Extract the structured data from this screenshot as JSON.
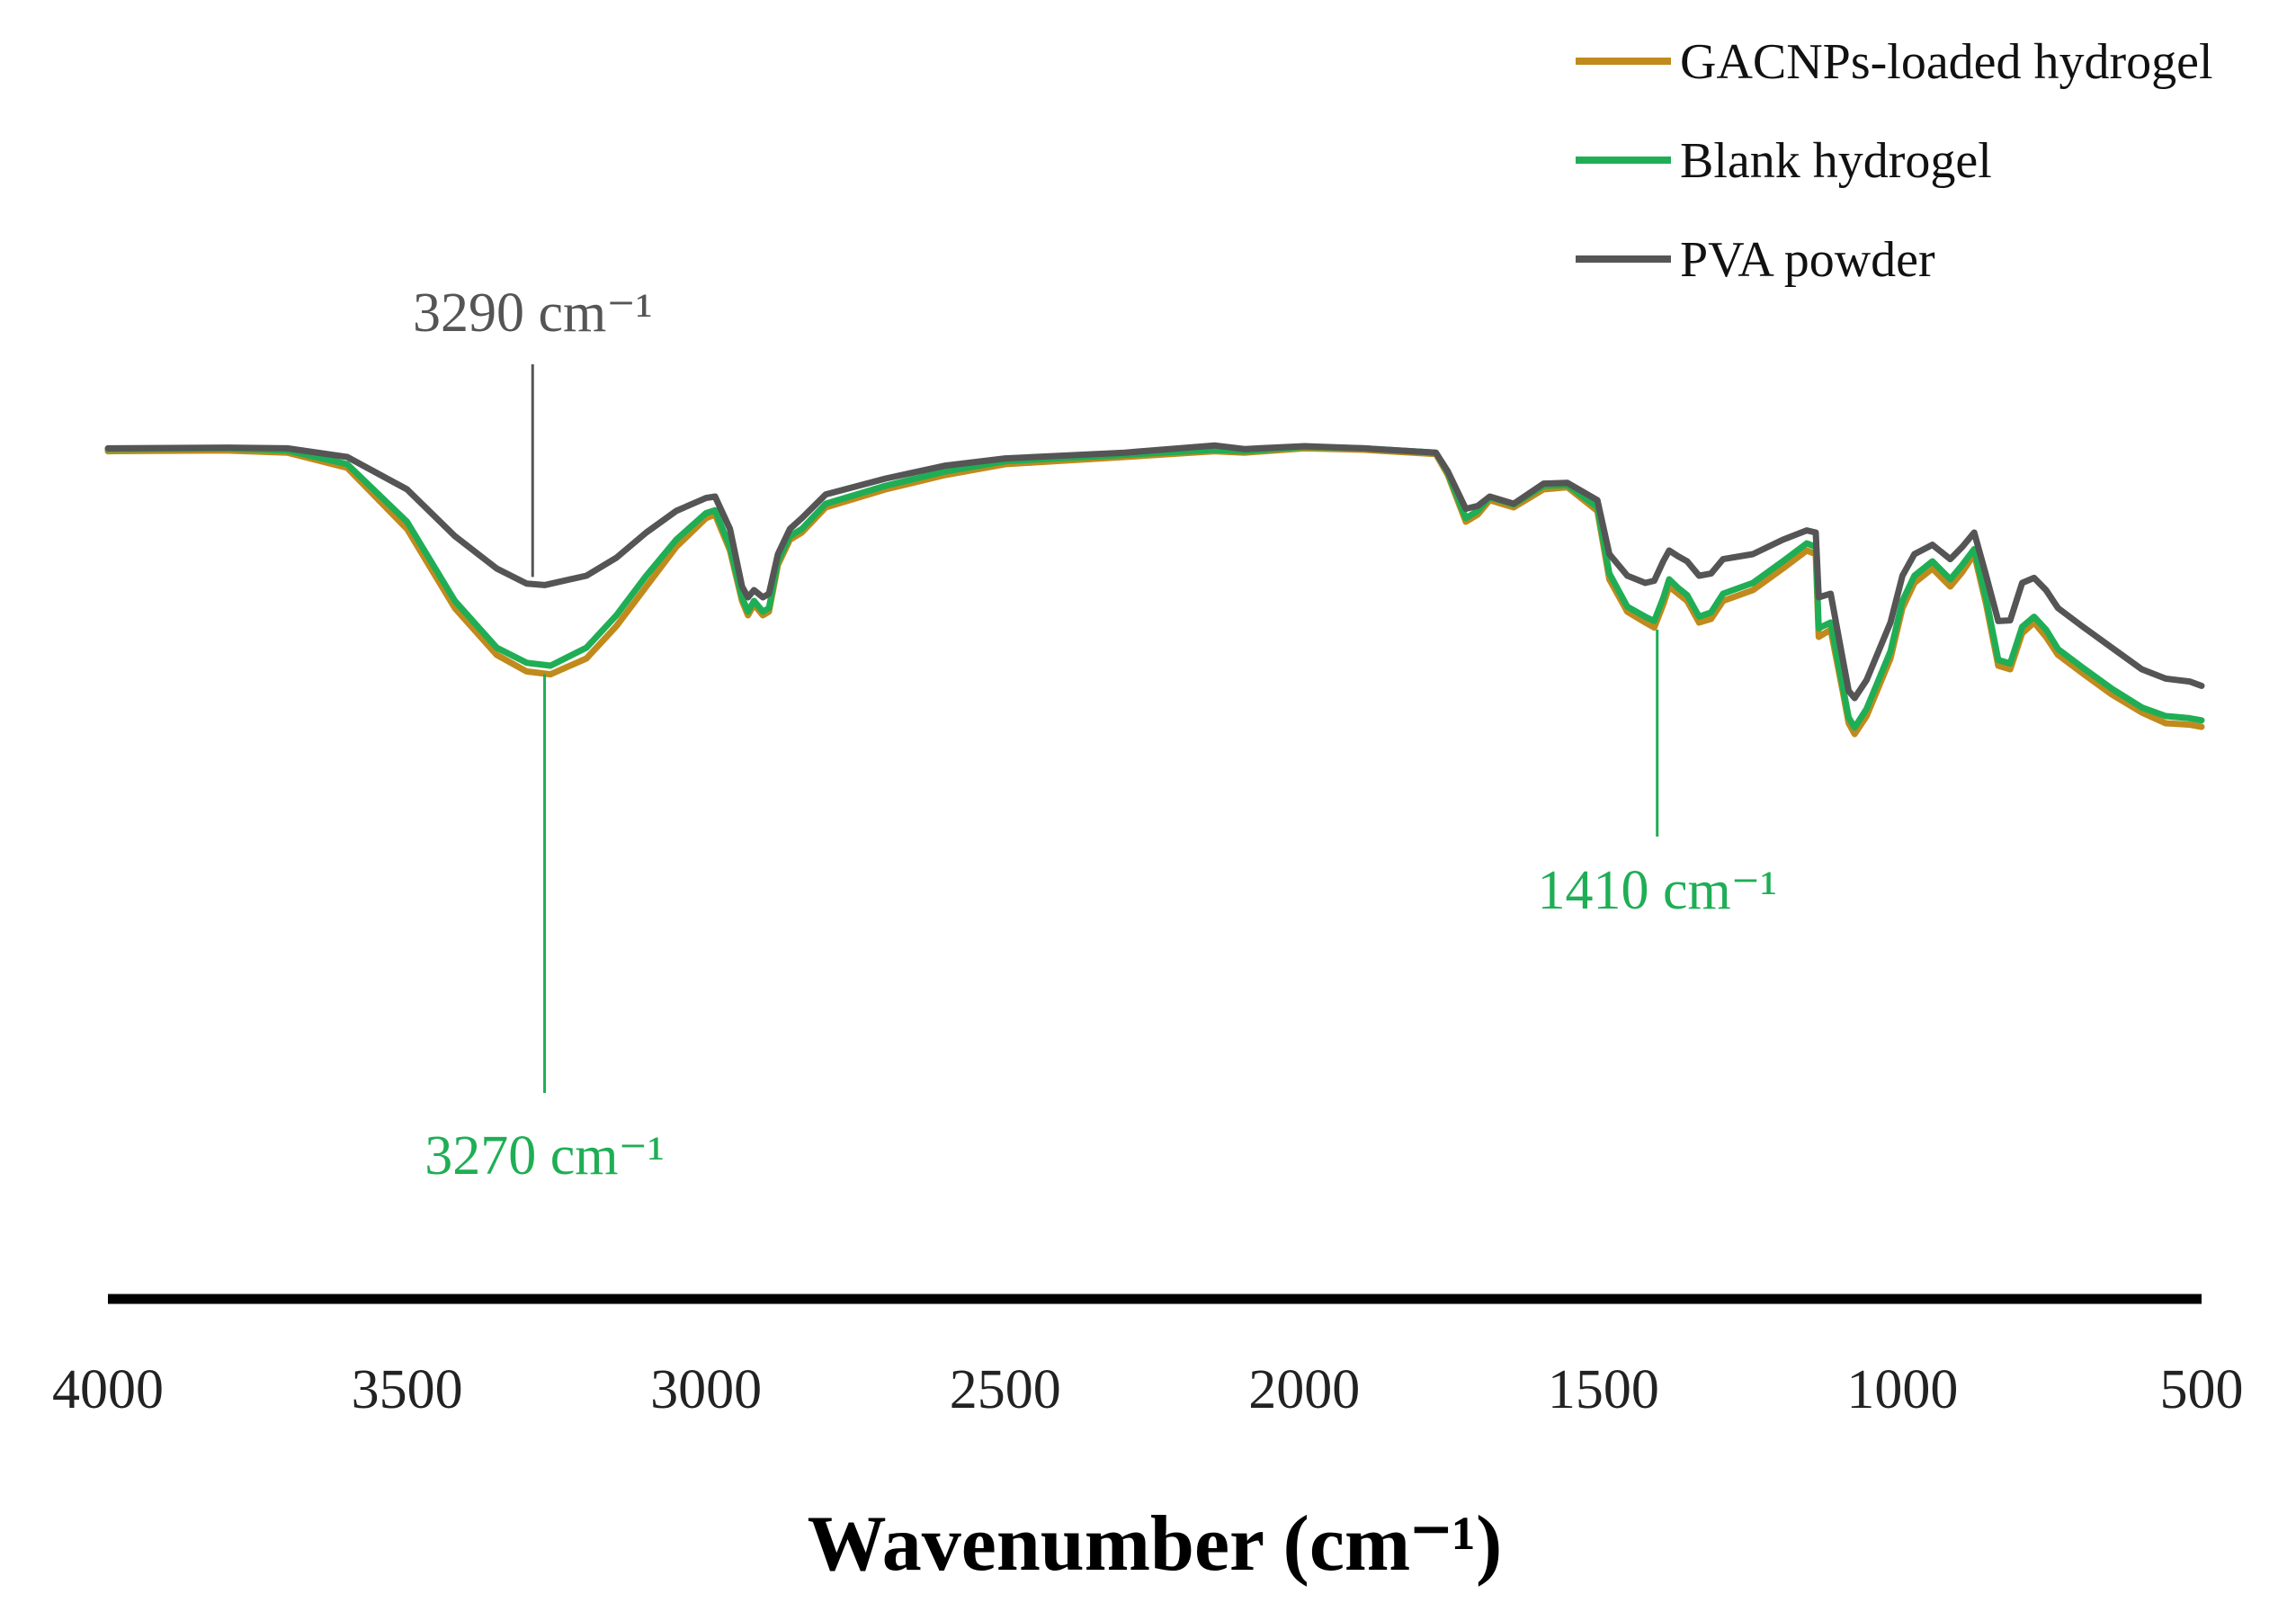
{
  "chart_data": {
    "type": "line",
    "title": "",
    "xlabel": "Wavenumber (cm⁻¹)",
    "ylabel": "",
    "xlim": [
      4000,
      500
    ],
    "x_reversed": true,
    "ylim": [
      0,
      100
    ],
    "grid": false,
    "x_ticks": [
      "4000",
      "3500",
      "3000",
      "2500",
      "2000",
      "1500",
      "1000",
      "500"
    ],
    "legend_position": "top-right",
    "series": [
      {
        "name": "GACNPs-loaded hydrogel",
        "color": "#C18A1C",
        "points": [
          [
            4000,
            84.8
          ],
          [
            3800,
            84.9
          ],
          [
            3700,
            84.6
          ],
          [
            3600,
            82.5
          ],
          [
            3500,
            74
          ],
          [
            3420,
            63
          ],
          [
            3350,
            56.5
          ],
          [
            3300,
            54.2
          ],
          [
            3260,
            53.8
          ],
          [
            3200,
            56
          ],
          [
            3150,
            60.5
          ],
          [
            3100,
            66
          ],
          [
            3050,
            71.5
          ],
          [
            3000,
            75.5
          ],
          [
            2985,
            76
          ],
          [
            2960,
            71
          ],
          [
            2940,
            64
          ],
          [
            2930,
            62
          ],
          [
            2920,
            63.5
          ],
          [
            2905,
            62
          ],
          [
            2895,
            62.5
          ],
          [
            2880,
            69
          ],
          [
            2860,
            72.5
          ],
          [
            2840,
            73.5
          ],
          [
            2800,
            77
          ],
          [
            2700,
            79.5
          ],
          [
            2600,
            81.5
          ],
          [
            2500,
            83
          ],
          [
            2300,
            84
          ],
          [
            2150,
            84.8
          ],
          [
            2100,
            84.6
          ],
          [
            2000,
            85.2
          ],
          [
            1900,
            85
          ],
          [
            1780,
            84.4
          ],
          [
            1760,
            81.5
          ],
          [
            1730,
            75
          ],
          [
            1710,
            76
          ],
          [
            1690,
            78
          ],
          [
            1650,
            77
          ],
          [
            1600,
            79.5
          ],
          [
            1560,
            79.8
          ],
          [
            1510,
            76.5
          ],
          [
            1490,
            67
          ],
          [
            1460,
            62.5
          ],
          [
            1430,
            61
          ],
          [
            1415,
            60.3
          ],
          [
            1400,
            63.5
          ],
          [
            1390,
            66
          ],
          [
            1375,
            65
          ],
          [
            1360,
            64
          ],
          [
            1340,
            61
          ],
          [
            1320,
            61.5
          ],
          [
            1300,
            64
          ],
          [
            1250,
            65.5
          ],
          [
            1200,
            68.5
          ],
          [
            1160,
            71
          ],
          [
            1145,
            70.5
          ],
          [
            1140,
            59
          ],
          [
            1120,
            60
          ],
          [
            1100,
            51.5
          ],
          [
            1090,
            47
          ],
          [
            1080,
            45.5
          ],
          [
            1060,
            48
          ],
          [
            1040,
            52
          ],
          [
            1020,
            56
          ],
          [
            1000,
            63
          ],
          [
            980,
            66.5
          ],
          [
            950,
            68.5
          ],
          [
            920,
            66
          ],
          [
            900,
            68
          ],
          [
            880,
            70.5
          ],
          [
            860,
            63.5
          ],
          [
            840,
            55
          ],
          [
            820,
            54.5
          ],
          [
            800,
            59.5
          ],
          [
            780,
            61
          ],
          [
            760,
            59
          ],
          [
            740,
            56.5
          ],
          [
            700,
            54
          ],
          [
            650,
            51
          ],
          [
            600,
            48.5
          ],
          [
            560,
            47
          ],
          [
            520,
            46.8
          ],
          [
            500,
            46.5
          ]
        ]
      },
      {
        "name": "Blank hydrogel",
        "color": "#1FAE55",
        "points": [
          [
            4000,
            85.1
          ],
          [
            3800,
            85.2
          ],
          [
            3700,
            84.9
          ],
          [
            3600,
            83
          ],
          [
            3500,
            75
          ],
          [
            3420,
            64
          ],
          [
            3350,
            57.5
          ],
          [
            3300,
            55.4
          ],
          [
            3260,
            55
          ],
          [
            3200,
            57.5
          ],
          [
            3150,
            62
          ],
          [
            3100,
            67.5
          ],
          [
            3050,
            72.5
          ],
          [
            3000,
            76.2
          ],
          [
            2985,
            76.6
          ],
          [
            2960,
            71.5
          ],
          [
            2940,
            64.5
          ],
          [
            2930,
            62.5
          ],
          [
            2920,
            64
          ],
          [
            2905,
            62.5
          ],
          [
            2895,
            63
          ],
          [
            2880,
            69.5
          ],
          [
            2860,
            73
          ],
          [
            2840,
            74
          ],
          [
            2800,
            77.5
          ],
          [
            2700,
            80
          ],
          [
            2600,
            82
          ],
          [
            2500,
            83.4
          ],
          [
            2300,
            84.3
          ],
          [
            2150,
            85
          ],
          [
            2100,
            84.8
          ],
          [
            2000,
            85.4
          ],
          [
            1900,
            85.2
          ],
          [
            1780,
            84.6
          ],
          [
            1760,
            81.8
          ],
          [
            1730,
            75.5
          ],
          [
            1710,
            76.5
          ],
          [
            1690,
            78.4
          ],
          [
            1650,
            77.4
          ],
          [
            1600,
            80
          ],
          [
            1560,
            80.1
          ],
          [
            1510,
            77
          ],
          [
            1490,
            67.8
          ],
          [
            1460,
            63.2
          ],
          [
            1430,
            61.8
          ],
          [
            1415,
            61.2
          ],
          [
            1400,
            64.4
          ],
          [
            1390,
            67
          ],
          [
            1375,
            65.8
          ],
          [
            1360,
            64.8
          ],
          [
            1340,
            61.8
          ],
          [
            1320,
            62.4
          ],
          [
            1300,
            65
          ],
          [
            1250,
            66.5
          ],
          [
            1200,
            69.5
          ],
          [
            1160,
            72
          ],
          [
            1145,
            71.5
          ],
          [
            1140,
            60.2
          ],
          [
            1120,
            61
          ],
          [
            1100,
            52.2
          ],
          [
            1090,
            47.8
          ],
          [
            1080,
            46.4
          ],
          [
            1060,
            49
          ],
          [
            1040,
            53
          ],
          [
            1020,
            57
          ],
          [
            1000,
            64
          ],
          [
            980,
            67.5
          ],
          [
            950,
            69.5
          ],
          [
            920,
            67
          ],
          [
            900,
            69
          ],
          [
            880,
            71.2
          ],
          [
            860,
            64.3
          ],
          [
            840,
            55.8
          ],
          [
            820,
            55.3
          ],
          [
            800,
            60.4
          ],
          [
            780,
            61.8
          ],
          [
            760,
            60
          ],
          [
            740,
            57.3
          ],
          [
            700,
            54.8
          ],
          [
            650,
            51.8
          ],
          [
            600,
            49.2
          ],
          [
            560,
            48
          ],
          [
            520,
            47.7
          ],
          [
            500,
            47.4
          ]
        ]
      },
      {
        "name": "PVA powder",
        "color": "#555555",
        "points": [
          [
            4000,
            85.2
          ],
          [
            3800,
            85.3
          ],
          [
            3700,
            85.2
          ],
          [
            3600,
            84
          ],
          [
            3500,
            79.5
          ],
          [
            3420,
            73
          ],
          [
            3350,
            68.5
          ],
          [
            3300,
            66.4
          ],
          [
            3270,
            66.2
          ],
          [
            3200,
            67.5
          ],
          [
            3150,
            70
          ],
          [
            3100,
            73.5
          ],
          [
            3050,
            76.5
          ],
          [
            3000,
            78.3
          ],
          [
            2985,
            78.5
          ],
          [
            2960,
            74
          ],
          [
            2940,
            66
          ],
          [
            2930,
            64.5
          ],
          [
            2920,
            65.5
          ],
          [
            2905,
            64.5
          ],
          [
            2895,
            65
          ],
          [
            2880,
            70.5
          ],
          [
            2860,
            74
          ],
          [
            2840,
            75.5
          ],
          [
            2800,
            78.8
          ],
          [
            2700,
            81
          ],
          [
            2600,
            82.8
          ],
          [
            2500,
            83.8
          ],
          [
            2300,
            84.6
          ],
          [
            2150,
            85.6
          ],
          [
            2100,
            85.1
          ],
          [
            2000,
            85.5
          ],
          [
            1900,
            85.2
          ],
          [
            1780,
            84.6
          ],
          [
            1760,
            82
          ],
          [
            1730,
            76.8
          ],
          [
            1710,
            77.2
          ],
          [
            1690,
            78.5
          ],
          [
            1650,
            77.5
          ],
          [
            1600,
            80.3
          ],
          [
            1560,
            80.4
          ],
          [
            1510,
            78
          ],
          [
            1490,
            70.5
          ],
          [
            1460,
            67.5
          ],
          [
            1430,
            66.5
          ],
          [
            1415,
            66.8
          ],
          [
            1400,
            69.5
          ],
          [
            1390,
            71
          ],
          [
            1375,
            70.2
          ],
          [
            1360,
            69.5
          ],
          [
            1340,
            67.5
          ],
          [
            1320,
            67.8
          ],
          [
            1300,
            69.8
          ],
          [
            1250,
            70.5
          ],
          [
            1200,
            72.5
          ],
          [
            1160,
            73.8
          ],
          [
            1145,
            73.5
          ],
          [
            1140,
            64.5
          ],
          [
            1120,
            65
          ],
          [
            1100,
            56
          ],
          [
            1090,
            51.5
          ],
          [
            1080,
            50.5
          ],
          [
            1060,
            53
          ],
          [
            1040,
            57
          ],
          [
            1020,
            61
          ],
          [
            1000,
            67.5
          ],
          [
            980,
            70.5
          ],
          [
            950,
            71.8
          ],
          [
            920,
            69.8
          ],
          [
            900,
            71.5
          ],
          [
            880,
            73.5
          ],
          [
            860,
            67.5
          ],
          [
            840,
            61.2
          ],
          [
            820,
            61.3
          ],
          [
            800,
            66.5
          ],
          [
            780,
            67.2
          ],
          [
            760,
            65.5
          ],
          [
            740,
            63
          ],
          [
            700,
            60.5
          ],
          [
            650,
            57.5
          ],
          [
            600,
            54.5
          ],
          [
            560,
            53.2
          ],
          [
            520,
            52.8
          ],
          [
            500,
            52.2
          ]
        ]
      }
    ],
    "annotations": [
      {
        "text": "3290 cm⁻¹",
        "x": 3290,
        "color": "#555555",
        "series": "PVA powder",
        "placement": "above"
      },
      {
        "text": "3270 cm⁻¹",
        "x": 3270,
        "color": "#1FAE55",
        "series": "Blank hydrogel",
        "placement": "below"
      },
      {
        "text": "1410 cm⁻¹",
        "x": 1410,
        "color": "#1FAE55",
        "series": "Blank hydrogel",
        "placement": "below"
      }
    ]
  }
}
